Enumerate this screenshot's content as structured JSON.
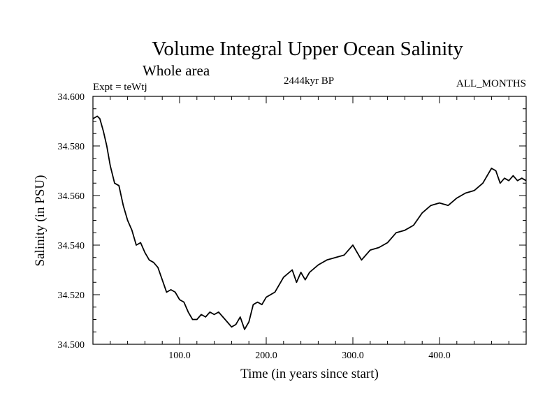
{
  "chart_data": {
    "type": "line",
    "title": "Volume Integral Upper Ocean Salinity",
    "subtitle": "Whole area",
    "annotations": {
      "left": "Expt = teWtj",
      "center": "2444kyr BP",
      "right": "ALL_MONTHS"
    },
    "xlabel": "Time (in years since start)",
    "ylabel": "Salinity (in PSU)",
    "xlim": [
      0,
      500
    ],
    "ylim": [
      34.5,
      34.6
    ],
    "xticks": [
      100,
      200,
      300,
      400
    ],
    "xtick_labels": [
      "100.0",
      "200.0",
      "300.0",
      "400.0"
    ],
    "yticks": [
      34.5,
      34.52,
      34.54,
      34.56,
      34.58,
      34.6
    ],
    "ytick_labels": [
      "34.500",
      "34.520",
      "34.540",
      "34.560",
      "34.580",
      "34.600"
    ],
    "grid": false,
    "series": [
      {
        "name": "salinity",
        "color": "#000000",
        "x": [
          0,
          5,
          8,
          12,
          16,
          20,
          25,
          30,
          35,
          40,
          45,
          50,
          55,
          60,
          65,
          70,
          75,
          80,
          85,
          90,
          95,
          100,
          105,
          110,
          115,
          120,
          125,
          130,
          135,
          140,
          145,
          150,
          155,
          160,
          165,
          170,
          175,
          180,
          185,
          190,
          195,
          200,
          210,
          220,
          230,
          235,
          240,
          245,
          250,
          260,
          270,
          280,
          290,
          300,
          310,
          320,
          330,
          340,
          350,
          360,
          370,
          380,
          390,
          400,
          410,
          420,
          430,
          440,
          450,
          460,
          465,
          470,
          475,
          480,
          485,
          490,
          495,
          500
        ],
        "values": [
          34.591,
          34.592,
          34.591,
          34.586,
          34.58,
          34.572,
          34.565,
          34.564,
          34.556,
          34.55,
          34.546,
          34.54,
          34.541,
          34.537,
          34.534,
          34.533,
          34.531,
          34.526,
          34.521,
          34.522,
          34.521,
          34.518,
          34.517,
          34.513,
          34.51,
          34.51,
          34.512,
          34.511,
          34.513,
          34.512,
          34.513,
          34.511,
          34.509,
          34.507,
          34.508,
          34.511,
          34.506,
          34.509,
          34.516,
          34.517,
          34.516,
          34.519,
          34.521,
          34.527,
          34.53,
          34.525,
          34.529,
          34.526,
          34.529,
          34.532,
          34.534,
          34.535,
          34.536,
          34.54,
          34.534,
          34.538,
          34.539,
          34.541,
          34.545,
          34.546,
          34.548,
          34.553,
          34.556,
          34.557,
          34.556,
          34.559,
          34.561,
          34.562,
          34.565,
          34.571,
          34.57,
          34.565,
          34.567,
          34.566,
          34.568,
          34.566,
          34.567,
          34.566
        ]
      }
    ]
  }
}
